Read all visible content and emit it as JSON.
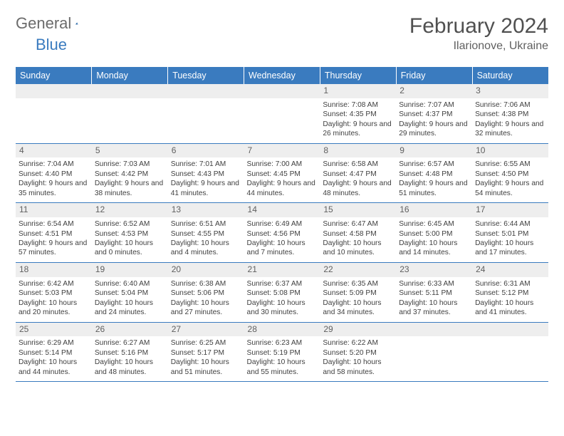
{
  "brand": {
    "part1": "General",
    "part2": "Blue"
  },
  "title": "February 2024",
  "location": "Ilarionove, Ukraine",
  "colors": {
    "header_bg": "#3a7bbf",
    "header_text": "#ffffff",
    "daynum_bg": "#eeeeee",
    "row_divider": "#3a7bbf",
    "body_text": "#404040",
    "title_text": "#505050",
    "logo_gray": "#6b6b6b",
    "logo_blue": "#3a7bbf",
    "page_bg": "#ffffff"
  },
  "fonts": {
    "body_size_pt": 8,
    "daynum_size_pt": 9,
    "header_size_pt": 9.5,
    "title_size_pt": 23,
    "location_size_pt": 12
  },
  "weekdays": [
    "Sunday",
    "Monday",
    "Tuesday",
    "Wednesday",
    "Thursday",
    "Friday",
    "Saturday"
  ],
  "weeks": [
    [
      null,
      null,
      null,
      null,
      {
        "n": "1",
        "r": "7:08 AM",
        "s": "4:35 PM",
        "d": "9 hours and 26 minutes."
      },
      {
        "n": "2",
        "r": "7:07 AM",
        "s": "4:37 PM",
        "d": "9 hours and 29 minutes."
      },
      {
        "n": "3",
        "r": "7:06 AM",
        "s": "4:38 PM",
        "d": "9 hours and 32 minutes."
      }
    ],
    [
      {
        "n": "4",
        "r": "7:04 AM",
        "s": "4:40 PM",
        "d": "9 hours and 35 minutes."
      },
      {
        "n": "5",
        "r": "7:03 AM",
        "s": "4:42 PM",
        "d": "9 hours and 38 minutes."
      },
      {
        "n": "6",
        "r": "7:01 AM",
        "s": "4:43 PM",
        "d": "9 hours and 41 minutes."
      },
      {
        "n": "7",
        "r": "7:00 AM",
        "s": "4:45 PM",
        "d": "9 hours and 44 minutes."
      },
      {
        "n": "8",
        "r": "6:58 AM",
        "s": "4:47 PM",
        "d": "9 hours and 48 minutes."
      },
      {
        "n": "9",
        "r": "6:57 AM",
        "s": "4:48 PM",
        "d": "9 hours and 51 minutes."
      },
      {
        "n": "10",
        "r": "6:55 AM",
        "s": "4:50 PM",
        "d": "9 hours and 54 minutes."
      }
    ],
    [
      {
        "n": "11",
        "r": "6:54 AM",
        "s": "4:51 PM",
        "d": "9 hours and 57 minutes."
      },
      {
        "n": "12",
        "r": "6:52 AM",
        "s": "4:53 PM",
        "d": "10 hours and 0 minutes."
      },
      {
        "n": "13",
        "r": "6:51 AM",
        "s": "4:55 PM",
        "d": "10 hours and 4 minutes."
      },
      {
        "n": "14",
        "r": "6:49 AM",
        "s": "4:56 PM",
        "d": "10 hours and 7 minutes."
      },
      {
        "n": "15",
        "r": "6:47 AM",
        "s": "4:58 PM",
        "d": "10 hours and 10 minutes."
      },
      {
        "n": "16",
        "r": "6:45 AM",
        "s": "5:00 PM",
        "d": "10 hours and 14 minutes."
      },
      {
        "n": "17",
        "r": "6:44 AM",
        "s": "5:01 PM",
        "d": "10 hours and 17 minutes."
      }
    ],
    [
      {
        "n": "18",
        "r": "6:42 AM",
        "s": "5:03 PM",
        "d": "10 hours and 20 minutes."
      },
      {
        "n": "19",
        "r": "6:40 AM",
        "s": "5:04 PM",
        "d": "10 hours and 24 minutes."
      },
      {
        "n": "20",
        "r": "6:38 AM",
        "s": "5:06 PM",
        "d": "10 hours and 27 minutes."
      },
      {
        "n": "21",
        "r": "6:37 AM",
        "s": "5:08 PM",
        "d": "10 hours and 30 minutes."
      },
      {
        "n": "22",
        "r": "6:35 AM",
        "s": "5:09 PM",
        "d": "10 hours and 34 minutes."
      },
      {
        "n": "23",
        "r": "6:33 AM",
        "s": "5:11 PM",
        "d": "10 hours and 37 minutes."
      },
      {
        "n": "24",
        "r": "6:31 AM",
        "s": "5:12 PM",
        "d": "10 hours and 41 minutes."
      }
    ],
    [
      {
        "n": "25",
        "r": "6:29 AM",
        "s": "5:14 PM",
        "d": "10 hours and 44 minutes."
      },
      {
        "n": "26",
        "r": "6:27 AM",
        "s": "5:16 PM",
        "d": "10 hours and 48 minutes."
      },
      {
        "n": "27",
        "r": "6:25 AM",
        "s": "5:17 PM",
        "d": "10 hours and 51 minutes."
      },
      {
        "n": "28",
        "r": "6:23 AM",
        "s": "5:19 PM",
        "d": "10 hours and 55 minutes."
      },
      {
        "n": "29",
        "r": "6:22 AM",
        "s": "5:20 PM",
        "d": "10 hours and 58 minutes."
      },
      null,
      null
    ]
  ],
  "labels": {
    "sunrise": "Sunrise:",
    "sunset": "Sunset:",
    "daylight": "Daylight:"
  }
}
